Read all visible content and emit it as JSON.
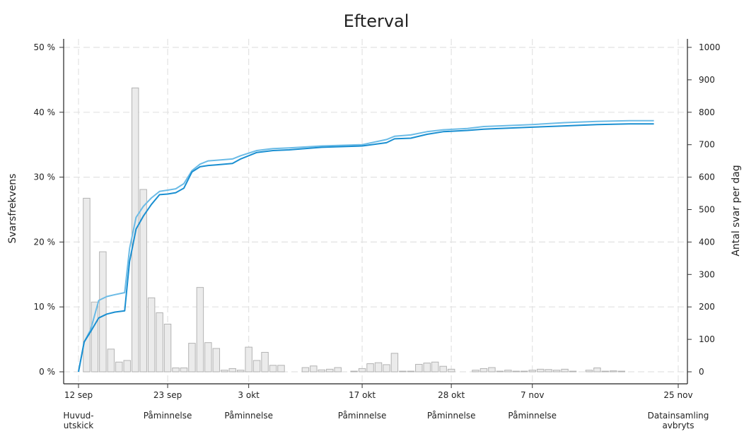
{
  "chart_data": {
    "type": "bar",
    "title": "Efterval",
    "ylabel_left": "Svarsfrekvens",
    "ylabel_right": "Antal svar per dag",
    "x_range_days": [
      0,
      74
    ],
    "left_axis": {
      "min": 0,
      "max": 50,
      "ticks": [
        "0 %",
        "10 %",
        "20 %",
        "30 %",
        "40 %",
        "50 %"
      ]
    },
    "right_axis": {
      "min": 0,
      "max": 1000,
      "ticks": [
        "0",
        "100",
        "200",
        "300",
        "400",
        "500",
        "600",
        "700",
        "800",
        "900",
        "1000"
      ]
    },
    "x_ticks": [
      {
        "label": "12 sep",
        "day": 0
      },
      {
        "label": "23 sep",
        "day": 11
      },
      {
        "label": "3 okt",
        "day": 21
      },
      {
        "label": "17 okt",
        "day": 35
      },
      {
        "label": "28 okt",
        "day": 46
      },
      {
        "label": "7 nov",
        "day": 56
      },
      {
        "label": "25 nov",
        "day": 74
      }
    ],
    "events": [
      {
        "label": "Huvud-",
        "label2": "utskick",
        "day": 0
      },
      {
        "label": "Påminnelse",
        "label2": "",
        "day": 11
      },
      {
        "label": "Påminnelse",
        "label2": "",
        "day": 21
      },
      {
        "label": "Påminnelse",
        "label2": "",
        "day": 35
      },
      {
        "label": "Påminnelse",
        "label2": "",
        "day": 46
      },
      {
        "label": "Påminnelse",
        "label2": "",
        "day": 56
      },
      {
        "label": "Datainsamling",
        "label2": "avbryts",
        "day": 74
      }
    ],
    "daily_responses": [
      {
        "day": 1,
        "value": 535
      },
      {
        "day": 2,
        "value": 215
      },
      {
        "day": 3,
        "value": 370
      },
      {
        "day": 4,
        "value": 70
      },
      {
        "day": 5,
        "value": 30
      },
      {
        "day": 6,
        "value": 35
      },
      {
        "day": 7,
        "value": 875
      },
      {
        "day": 8,
        "value": 562
      },
      {
        "day": 9,
        "value": 228
      },
      {
        "day": 10,
        "value": 182
      },
      {
        "day": 11,
        "value": 147
      },
      {
        "day": 12,
        "value": 12
      },
      {
        "day": 13,
        "value": 12
      },
      {
        "day": 14,
        "value": 88
      },
      {
        "day": 15,
        "value": 260
      },
      {
        "day": 16,
        "value": 90
      },
      {
        "day": 17,
        "value": 72
      },
      {
        "day": 18,
        "value": 5
      },
      {
        "day": 19,
        "value": 10
      },
      {
        "day": 20,
        "value": 5
      },
      {
        "day": 21,
        "value": 76
      },
      {
        "day": 22,
        "value": 35
      },
      {
        "day": 23,
        "value": 60
      },
      {
        "day": 24,
        "value": 20
      },
      {
        "day": 25,
        "value": 20
      },
      {
        "day": 28,
        "value": 13
      },
      {
        "day": 29,
        "value": 18
      },
      {
        "day": 30,
        "value": 6
      },
      {
        "day": 31,
        "value": 8
      },
      {
        "day": 32,
        "value": 13
      },
      {
        "day": 34,
        "value": 2
      },
      {
        "day": 35,
        "value": 10
      },
      {
        "day": 36,
        "value": 25
      },
      {
        "day": 37,
        "value": 28
      },
      {
        "day": 38,
        "value": 22
      },
      {
        "day": 39,
        "value": 57
      },
      {
        "day": 40,
        "value": 2
      },
      {
        "day": 41,
        "value": 2
      },
      {
        "day": 42,
        "value": 23
      },
      {
        "day": 43,
        "value": 27
      },
      {
        "day": 44,
        "value": 30
      },
      {
        "day": 45,
        "value": 17
      },
      {
        "day": 46,
        "value": 8
      },
      {
        "day": 49,
        "value": 5
      },
      {
        "day": 50,
        "value": 10
      },
      {
        "day": 51,
        "value": 13
      },
      {
        "day": 52,
        "value": 2
      },
      {
        "day": 53,
        "value": 5
      },
      {
        "day": 54,
        "value": 2
      },
      {
        "day": 55,
        "value": 2
      },
      {
        "day": 56,
        "value": 5
      },
      {
        "day": 57,
        "value": 8
      },
      {
        "day": 58,
        "value": 7
      },
      {
        "day": 59,
        "value": 5
      },
      {
        "day": 60,
        "value": 8
      },
      {
        "day": 61,
        "value": 2
      },
      {
        "day": 63,
        "value": 5
      },
      {
        "day": 64,
        "value": 12
      },
      {
        "day": 65,
        "value": 2
      },
      {
        "day": 66,
        "value": 3
      },
      {
        "day": 67,
        "value": 2
      }
    ],
    "series": [
      {
        "color": "#6bbbe6",
        "points": [
          [
            0,
            0
          ],
          [
            0.7,
            4.6
          ],
          [
            1.5,
            6.5
          ],
          [
            2.5,
            11.0
          ],
          [
            3.5,
            11.6
          ],
          [
            4.5,
            11.9
          ],
          [
            5.7,
            12.2
          ],
          [
            6.3,
            19.0
          ],
          [
            7.1,
            23.8
          ],
          [
            8.0,
            25.5
          ],
          [
            9.0,
            26.8
          ],
          [
            10.0,
            27.8
          ],
          [
            11.0,
            28.0
          ],
          [
            12.0,
            28.2
          ],
          [
            13.0,
            29.0
          ],
          [
            14.0,
            31.0
          ],
          [
            15.0,
            32.0
          ],
          [
            16.0,
            32.5
          ],
          [
            17.0,
            32.6
          ],
          [
            19.0,
            32.8
          ],
          [
            20.0,
            33.3
          ],
          [
            22.0,
            34.1
          ],
          [
            24.0,
            34.4
          ],
          [
            26.0,
            34.5
          ],
          [
            30.0,
            34.8
          ],
          [
            35.0,
            35.0
          ],
          [
            38.0,
            35.8
          ],
          [
            39.0,
            36.3
          ],
          [
            41.0,
            36.5
          ],
          [
            43.0,
            37.0
          ],
          [
            45.0,
            37.3
          ],
          [
            48.0,
            37.5
          ],
          [
            50.0,
            37.8
          ],
          [
            52.0,
            37.9
          ],
          [
            56.0,
            38.1
          ],
          [
            60.0,
            38.4
          ],
          [
            64.0,
            38.6
          ],
          [
            68.0,
            38.7
          ],
          [
            71.0,
            38.7
          ]
        ]
      },
      {
        "color": "#1a8fd1",
        "points": [
          [
            0,
            0
          ],
          [
            0.7,
            4.6
          ],
          [
            1.5,
            6.2
          ],
          [
            2.5,
            8.3
          ],
          [
            3.5,
            8.9
          ],
          [
            4.5,
            9.2
          ],
          [
            5.7,
            9.4
          ],
          [
            6.3,
            17.0
          ],
          [
            7.1,
            22.0
          ],
          [
            8.0,
            24.0
          ],
          [
            9.0,
            25.8
          ],
          [
            10.0,
            27.3
          ],
          [
            11.0,
            27.4
          ],
          [
            12.0,
            27.6
          ],
          [
            13.0,
            28.3
          ],
          [
            14.0,
            30.8
          ],
          [
            15.0,
            31.6
          ],
          [
            16.0,
            31.8
          ],
          [
            17.0,
            31.9
          ],
          [
            19.0,
            32.1
          ],
          [
            20.0,
            32.8
          ],
          [
            22.0,
            33.8
          ],
          [
            24.0,
            34.1
          ],
          [
            26.0,
            34.2
          ],
          [
            30.0,
            34.6
          ],
          [
            35.0,
            34.8
          ],
          [
            38.0,
            35.3
          ],
          [
            39.0,
            35.9
          ],
          [
            41.0,
            36.0
          ],
          [
            43.0,
            36.6
          ],
          [
            45.0,
            37.0
          ],
          [
            48.0,
            37.2
          ],
          [
            50.0,
            37.4
          ],
          [
            52.0,
            37.5
          ],
          [
            56.0,
            37.7
          ],
          [
            60.0,
            37.9
          ],
          [
            64.0,
            38.1
          ],
          [
            68.0,
            38.2
          ],
          [
            71.0,
            38.2
          ]
        ]
      }
    ]
  }
}
